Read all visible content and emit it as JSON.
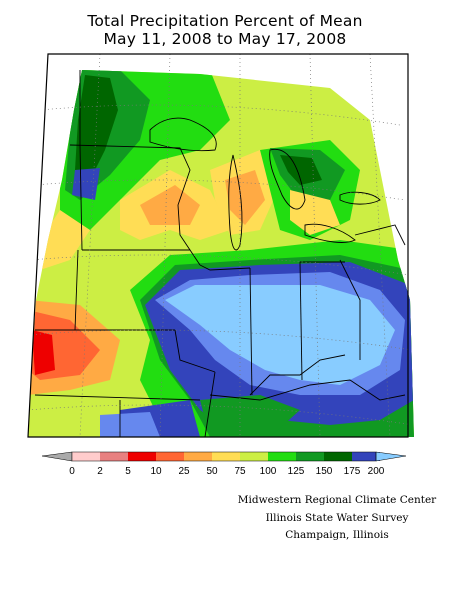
{
  "title": {
    "line1": "Total Precipitation Percent of Mean",
    "line2": "May 11, 2008 to May 17, 2008"
  },
  "legend": {
    "ticks": [
      "0",
      "2",
      "5",
      "10",
      "25",
      "50",
      "75",
      "100",
      "125",
      "150",
      "175",
      "200"
    ],
    "colors": {
      "below_arrow": "#aaaaaa",
      "c0": "#ffcccc",
      "c2": "#e88080",
      "c5": "#ee0000",
      "c10": "#ff6633",
      "c25": "#ffaa44",
      "c50": "#ffdd55",
      "c75": "#ccee44",
      "c100": "#22dd11",
      "c125": "#119922",
      "c150": "#006600",
      "c175": "#3344bb",
      "c200": "#6688ee",
      "above_arrow": "#88ccff"
    }
  },
  "credit": {
    "line1": "Midwestern Regional Climate Center",
    "line2": "Illinois State Water Survey",
    "line3": "Champaign, Illinois"
  },
  "map": {
    "region": "Midwest (MN, WI, MI, IA, IL, IN, OH, MO, KY)",
    "colors": {
      "frame": "#000000",
      "borders": "#000000",
      "graticule": "#777777",
      "pale_blue": "#88ccff"
    }
  }
}
